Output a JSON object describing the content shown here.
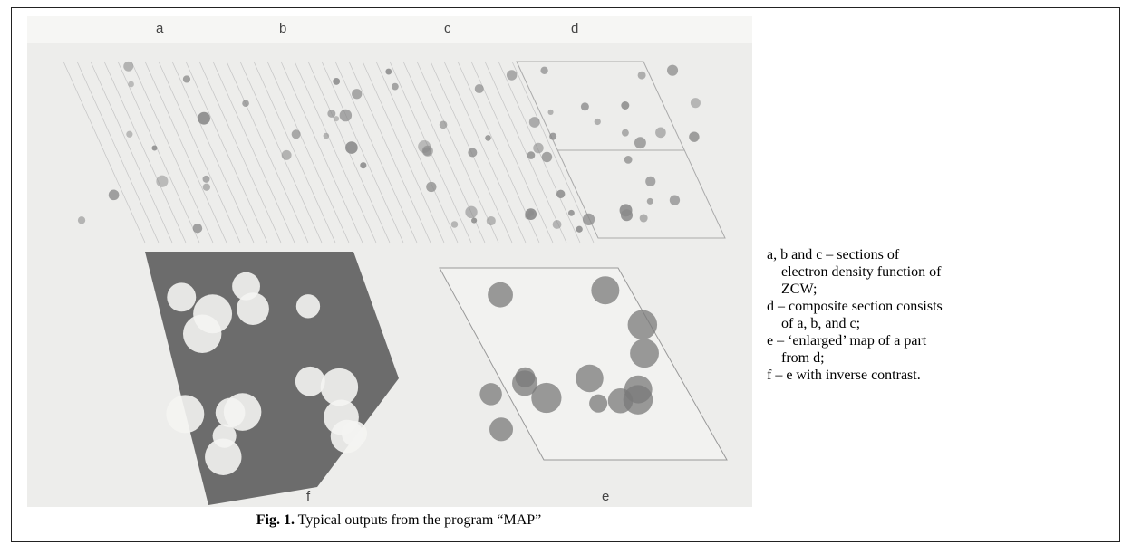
{
  "figure": {
    "panel_labels": {
      "a": "a",
      "b": "b",
      "c": "c",
      "d": "d",
      "e": "e",
      "f": "f"
    },
    "caption": {
      "label": "Fig. 1.",
      "text": "Typical outputs from the program “MAP”"
    },
    "legend": [
      "a, b and c – sections of electron density function of ZCW;",
      "d – composite section consists of a, b, and c;",
      "e – ‘enlarged’ map of a part from d;",
      "f – e with inverse contrast."
    ]
  }
}
